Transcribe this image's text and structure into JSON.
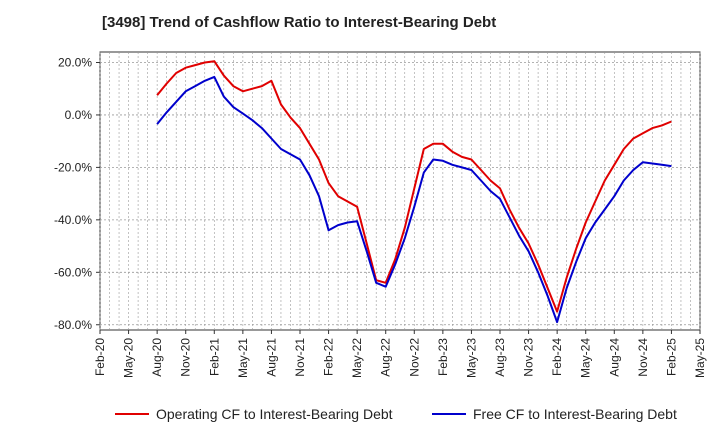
{
  "chart_data": {
    "type": "line",
    "title": "[3498]  Trend of Cashflow Ratio to Interest-Bearing Debt",
    "xlabel": "",
    "ylabel": "",
    "x_tick_labels": [
      "Feb-20",
      "May-20",
      "Aug-20",
      "Nov-20",
      "Feb-21",
      "May-21",
      "Aug-21",
      "Nov-21",
      "Feb-22",
      "May-22",
      "Aug-22",
      "Nov-22",
      "Feb-23",
      "May-23",
      "Aug-23",
      "Nov-23",
      "Feb-24",
      "May-24",
      "Aug-24",
      "Nov-24",
      "Feb-25",
      "May-25"
    ],
    "y_tick_labels": [
      "20.0%",
      "0.0%",
      "-20.0%",
      "-40.0%",
      "-60.0%",
      "-80.0%"
    ],
    "y_ticks": [
      20,
      0,
      -20,
      -40,
      -60,
      -80
    ],
    "ylim": [
      -82,
      24
    ],
    "grid": true,
    "legend_position": "bottom",
    "series": [
      {
        "name": "Operating CF to Interest-Bearing Debt",
        "color": "#e00000",
        "x": [
          2,
          3,
          4,
          5,
          6,
          7,
          8,
          9,
          10,
          11,
          12,
          13,
          14,
          15,
          16,
          17,
          18,
          19,
          20,
          21,
          22,
          23,
          24,
          25,
          26,
          27,
          28,
          29,
          30,
          31,
          32,
          33,
          34,
          35,
          36,
          37,
          38,
          39,
          40,
          41,
          42,
          43,
          44,
          45,
          46,
          47,
          48,
          49,
          50,
          51,
          52,
          53,
          54,
          55,
          56,
          57,
          58,
          59,
          60
        ],
        "y": [
          7.5,
          12,
          16,
          18.5,
          19.5,
          20,
          17,
          11,
          10,
          9,
          10,
          11,
          13,
          5,
          -1,
          -5,
          -11,
          -17,
          -26,
          -30,
          -33,
          -35,
          -49,
          -63,
          -55,
          -43,
          -28,
          -13,
          -17,
          -17,
          -20,
          -24,
          -28,
          -37,
          -44,
          -51,
          -62,
          -71,
          -76,
          -62,
          -51,
          -41,
          -33,
          -25,
          -19,
          -13,
          -9,
          -7,
          -5,
          -3,
          -2.5,
          0,
          0,
          0,
          0,
          0,
          0,
          0,
          0
        ],
        "x_display": [
          6,
          7,
          8,
          9,
          10,
          11,
          12,
          13,
          14,
          15,
          16,
          17,
          18,
          19,
          20,
          21,
          22,
          23,
          24,
          25,
          26,
          27,
          28,
          29,
          30,
          31,
          32,
          33,
          34,
          35,
          36,
          37,
          38,
          39,
          40,
          41,
          42,
          43,
          44,
          45,
          46,
          47,
          48,
          49,
          50,
          51,
          52,
          53,
          54,
          55,
          56,
          57,
          58,
          59,
          60
        ],
        "values": [
          [
            "Aug-20",
            7.5
          ],
          [
            "Sep-20",
            12
          ],
          [
            "Oct-20",
            16
          ],
          [
            "Nov-20",
            18
          ],
          [
            "Dec-20",
            19
          ],
          [
            "Jan-21",
            20
          ],
          [
            "Feb-21",
            20.5
          ],
          [
            "Mar-21",
            15
          ],
          [
            "Apr-21",
            11
          ],
          [
            "May-21",
            9
          ],
          [
            "Jun-21",
            10
          ],
          [
            "Jul-21",
            11
          ],
          [
            "Aug-21",
            13
          ],
          [
            "Sep-21",
            4
          ],
          [
            "Oct-21",
            -1
          ],
          [
            "Nov-21",
            -5
          ],
          [
            "Dec-21",
            -11
          ],
          [
            "Jan-22",
            -17
          ],
          [
            "Feb-22",
            -26
          ],
          [
            "Mar-22",
            -31
          ],
          [
            "Apr-22",
            -33
          ],
          [
            "May-22",
            -35
          ],
          [
            "Jun-22",
            -49
          ],
          [
            "Jul-22",
            -63
          ],
          [
            "Aug-22",
            -64
          ],
          [
            "Sep-22",
            -55
          ],
          [
            "Oct-22",
            -43
          ],
          [
            "Nov-22",
            -28
          ],
          [
            "Dec-22",
            -13
          ],
          [
            "Jan-23",
            -11
          ],
          [
            "Feb-23",
            -11
          ],
          [
            "Mar-23",
            -14
          ],
          [
            "Apr-23",
            -16
          ],
          [
            "May-23",
            -17
          ],
          [
            "Jun-23",
            -21
          ],
          [
            "Jul-23",
            -25
          ],
          [
            "Aug-23",
            -28
          ],
          [
            "Sep-23",
            -36
          ],
          [
            "Oct-23",
            -43
          ],
          [
            "Nov-23",
            -49
          ],
          [
            "Dec-23",
            -57
          ],
          [
            "Jan-24",
            -66
          ],
          [
            "Feb-24",
            -75
          ],
          [
            "Mar-24",
            -62
          ],
          [
            "Apr-24",
            -51
          ],
          [
            "May-24",
            -41
          ],
          [
            "Jun-24",
            -33
          ],
          [
            "Jul-24",
            -25
          ],
          [
            "Aug-24",
            -19
          ],
          [
            "Sep-24",
            -13
          ],
          [
            "Oct-24",
            -9
          ],
          [
            "Nov-24",
            -7
          ],
          [
            "Dec-24",
            -5
          ],
          [
            "Jan-25",
            -4
          ],
          [
            "Feb-25",
            -2.5
          ]
        ]
      },
      {
        "name": "Free CF to Interest-Bearing Debt",
        "color": "#0000cc",
        "values": [
          [
            "Aug-20",
            -3.5
          ],
          [
            "Sep-20",
            1
          ],
          [
            "Oct-20",
            5
          ],
          [
            "Nov-20",
            9
          ],
          [
            "Dec-20",
            11
          ],
          [
            "Jan-21",
            13
          ],
          [
            "Feb-21",
            14.5
          ],
          [
            "Mar-21",
            7
          ],
          [
            "Apr-21",
            3
          ],
          [
            "May-21",
            0.5
          ],
          [
            "Jun-21",
            -2
          ],
          [
            "Jul-21",
            -5
          ],
          [
            "Aug-21",
            -9
          ],
          [
            "Sep-21",
            -13
          ],
          [
            "Oct-21",
            -15
          ],
          [
            "Nov-21",
            -17
          ],
          [
            "Dec-21",
            -23
          ],
          [
            "Jan-22",
            -31
          ],
          [
            "Feb-22",
            -44
          ],
          [
            "Mar-22",
            -42
          ],
          [
            "Apr-22",
            -41
          ],
          [
            "May-22",
            -40.5
          ],
          [
            "Jun-22",
            -52
          ],
          [
            "Jul-22",
            -64
          ],
          [
            "Aug-22",
            -65.5
          ],
          [
            "Sep-22",
            -57
          ],
          [
            "Oct-22",
            -47
          ],
          [
            "Nov-22",
            -35
          ],
          [
            "Dec-22",
            -22
          ],
          [
            "Jan-23",
            -17
          ],
          [
            "Feb-23",
            -17.5
          ],
          [
            "Mar-23",
            -19
          ],
          [
            "Apr-23",
            -20
          ],
          [
            "May-23",
            -21
          ],
          [
            "Jun-23",
            -25
          ],
          [
            "Jul-23",
            -29
          ],
          [
            "Aug-23",
            -32
          ],
          [
            "Sep-23",
            -39
          ],
          [
            "Oct-23",
            -46
          ],
          [
            "Nov-23",
            -52
          ],
          [
            "Dec-23",
            -60
          ],
          [
            "Jan-24",
            -69
          ],
          [
            "Feb-24",
            -79
          ],
          [
            "Mar-24",
            -66
          ],
          [
            "Apr-24",
            -56
          ],
          [
            "May-24",
            -47
          ],
          [
            "Jun-24",
            -41
          ],
          [
            "Jul-24",
            -36
          ],
          [
            "Aug-24",
            -31
          ],
          [
            "Sep-24",
            -25
          ],
          [
            "Oct-24",
            -21
          ],
          [
            "Nov-24",
            -18
          ],
          [
            "Dec-24",
            -18.5
          ],
          [
            "Jan-25",
            -19
          ],
          [
            "Feb-25",
            -19.5
          ]
        ]
      }
    ]
  }
}
